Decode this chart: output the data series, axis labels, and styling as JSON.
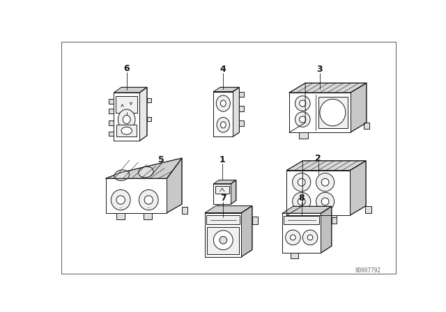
{
  "bg_color": "#ffffff",
  "line_color": "#1a1a1a",
  "fig_width": 6.4,
  "fig_height": 4.48,
  "dpi": 100,
  "part_number": "00007792",
  "border_color": "#cccccc",
  "label_color": "#111111"
}
